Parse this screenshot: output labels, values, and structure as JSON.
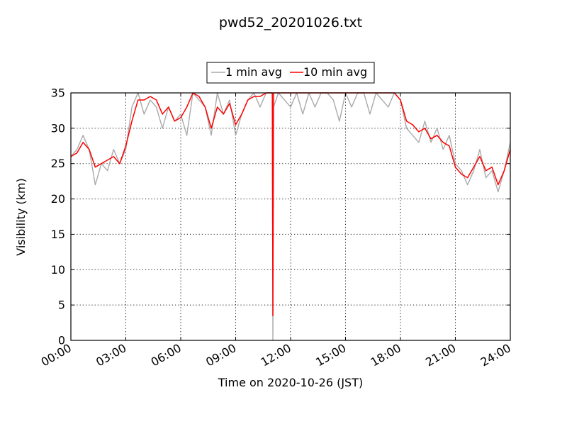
{
  "chart_data": {
    "type": "line",
    "title": "pwd52_20201026.txt",
    "xlabel": "Time on 2020-10-26 (JST)",
    "ylabel": "Visibility (km)",
    "xlim": [
      "00:00",
      "24:00"
    ],
    "ylim": [
      0,
      35
    ],
    "x_ticks": [
      "00:00",
      "03:00",
      "06:00",
      "09:00",
      "12:00",
      "15:00",
      "18:00",
      "21:00",
      "24:00"
    ],
    "y_ticks": [
      0,
      5,
      10,
      15,
      20,
      25,
      30,
      35
    ],
    "grid": true,
    "legend_position": "top-center, above plot",
    "series": [
      {
        "name": "1 min avg",
        "color": "#aaaaaa",
        "x": [
          "00:00",
          "00:20",
          "00:40",
          "01:00",
          "01:20",
          "01:40",
          "02:00",
          "02:20",
          "02:40",
          "03:00",
          "03:20",
          "03:40",
          "04:00",
          "04:20",
          "04:40",
          "05:00",
          "05:20",
          "05:40",
          "06:00",
          "06:20",
          "06:40",
          "07:00",
          "07:20",
          "07:40",
          "08:00",
          "08:20",
          "08:40",
          "09:00",
          "09:20",
          "09:40",
          "10:00",
          "10:20",
          "10:40",
          "11:00",
          "11:02",
          "11:04",
          "11:20",
          "11:40",
          "12:00",
          "12:20",
          "12:40",
          "13:00",
          "13:20",
          "13:40",
          "14:00",
          "14:20",
          "14:40",
          "15:00",
          "15:20",
          "15:40",
          "16:00",
          "16:20",
          "16:40",
          "17:00",
          "17:20",
          "17:40",
          "18:00",
          "18:20",
          "18:40",
          "19:00",
          "19:20",
          "19:40",
          "20:00",
          "20:20",
          "20:40",
          "21:00",
          "21:20",
          "21:40",
          "22:00",
          "22:20",
          "22:40",
          "23:00",
          "23:20",
          "23:40",
          "24:00"
        ],
        "y": [
          26,
          27,
          29,
          27,
          22,
          25,
          24,
          27,
          25,
          27,
          33,
          35,
          32,
          34,
          33,
          30,
          33,
          31,
          32,
          29,
          35,
          34,
          33,
          29,
          35,
          32,
          34,
          29,
          32,
          34,
          35,
          33,
          35,
          35,
          0,
          33,
          35,
          34,
          33,
          35,
          32,
          35,
          33,
          35,
          35,
          34,
          31,
          35,
          33,
          35,
          35,
          32,
          35,
          34,
          33,
          35,
          34,
          30,
          29,
          28,
          31,
          28,
          30,
          27,
          29,
          25,
          24,
          22,
          24,
          27,
          23,
          24,
          21,
          24,
          28
        ]
      },
      {
        "name": "10 min avg",
        "color": "#ff0000",
        "x": [
          "00:00",
          "00:20",
          "00:40",
          "01:00",
          "01:20",
          "01:40",
          "02:00",
          "02:20",
          "02:40",
          "03:00",
          "03:20",
          "03:40",
          "04:00",
          "04:20",
          "04:40",
          "05:00",
          "05:20",
          "05:40",
          "06:00",
          "06:20",
          "06:40",
          "07:00",
          "07:20",
          "07:40",
          "08:00",
          "08:20",
          "08:40",
          "09:00",
          "09:20",
          "09:40",
          "10:00",
          "10:20",
          "10:40",
          "11:00",
          "11:02",
          "11:04",
          "11:20",
          "11:40",
          "12:00",
          "12:20",
          "12:40",
          "13:00",
          "13:20",
          "13:40",
          "14:00",
          "14:20",
          "14:40",
          "15:00",
          "15:20",
          "15:40",
          "16:00",
          "16:20",
          "16:40",
          "17:00",
          "17:20",
          "17:40",
          "18:00",
          "18:20",
          "18:40",
          "19:00",
          "19:20",
          "19:40",
          "20:00",
          "20:20",
          "20:40",
          "21:00",
          "21:20",
          "21:40",
          "22:00",
          "22:20",
          "22:40",
          "23:00",
          "23:20",
          "23:40",
          "24:00"
        ],
        "y": [
          26,
          26.5,
          28,
          27,
          24.5,
          25,
          25.5,
          26,
          25,
          27.5,
          31,
          34,
          34,
          34.5,
          34,
          32,
          33,
          31,
          31.5,
          33,
          35,
          34.5,
          33,
          30,
          33,
          32,
          33.5,
          30.5,
          32,
          34,
          34.5,
          34.5,
          35,
          35,
          3.5,
          35,
          35,
          35,
          35,
          35,
          35,
          35,
          35,
          35,
          35,
          35,
          35,
          35,
          35,
          35,
          35,
          35,
          35,
          35,
          35,
          35,
          34,
          31,
          30.5,
          29.5,
          30,
          28.5,
          29,
          28,
          27.5,
          24.5,
          23.5,
          23,
          24.5,
          26,
          24,
          24.5,
          22,
          24,
          27
        ]
      }
    ]
  }
}
